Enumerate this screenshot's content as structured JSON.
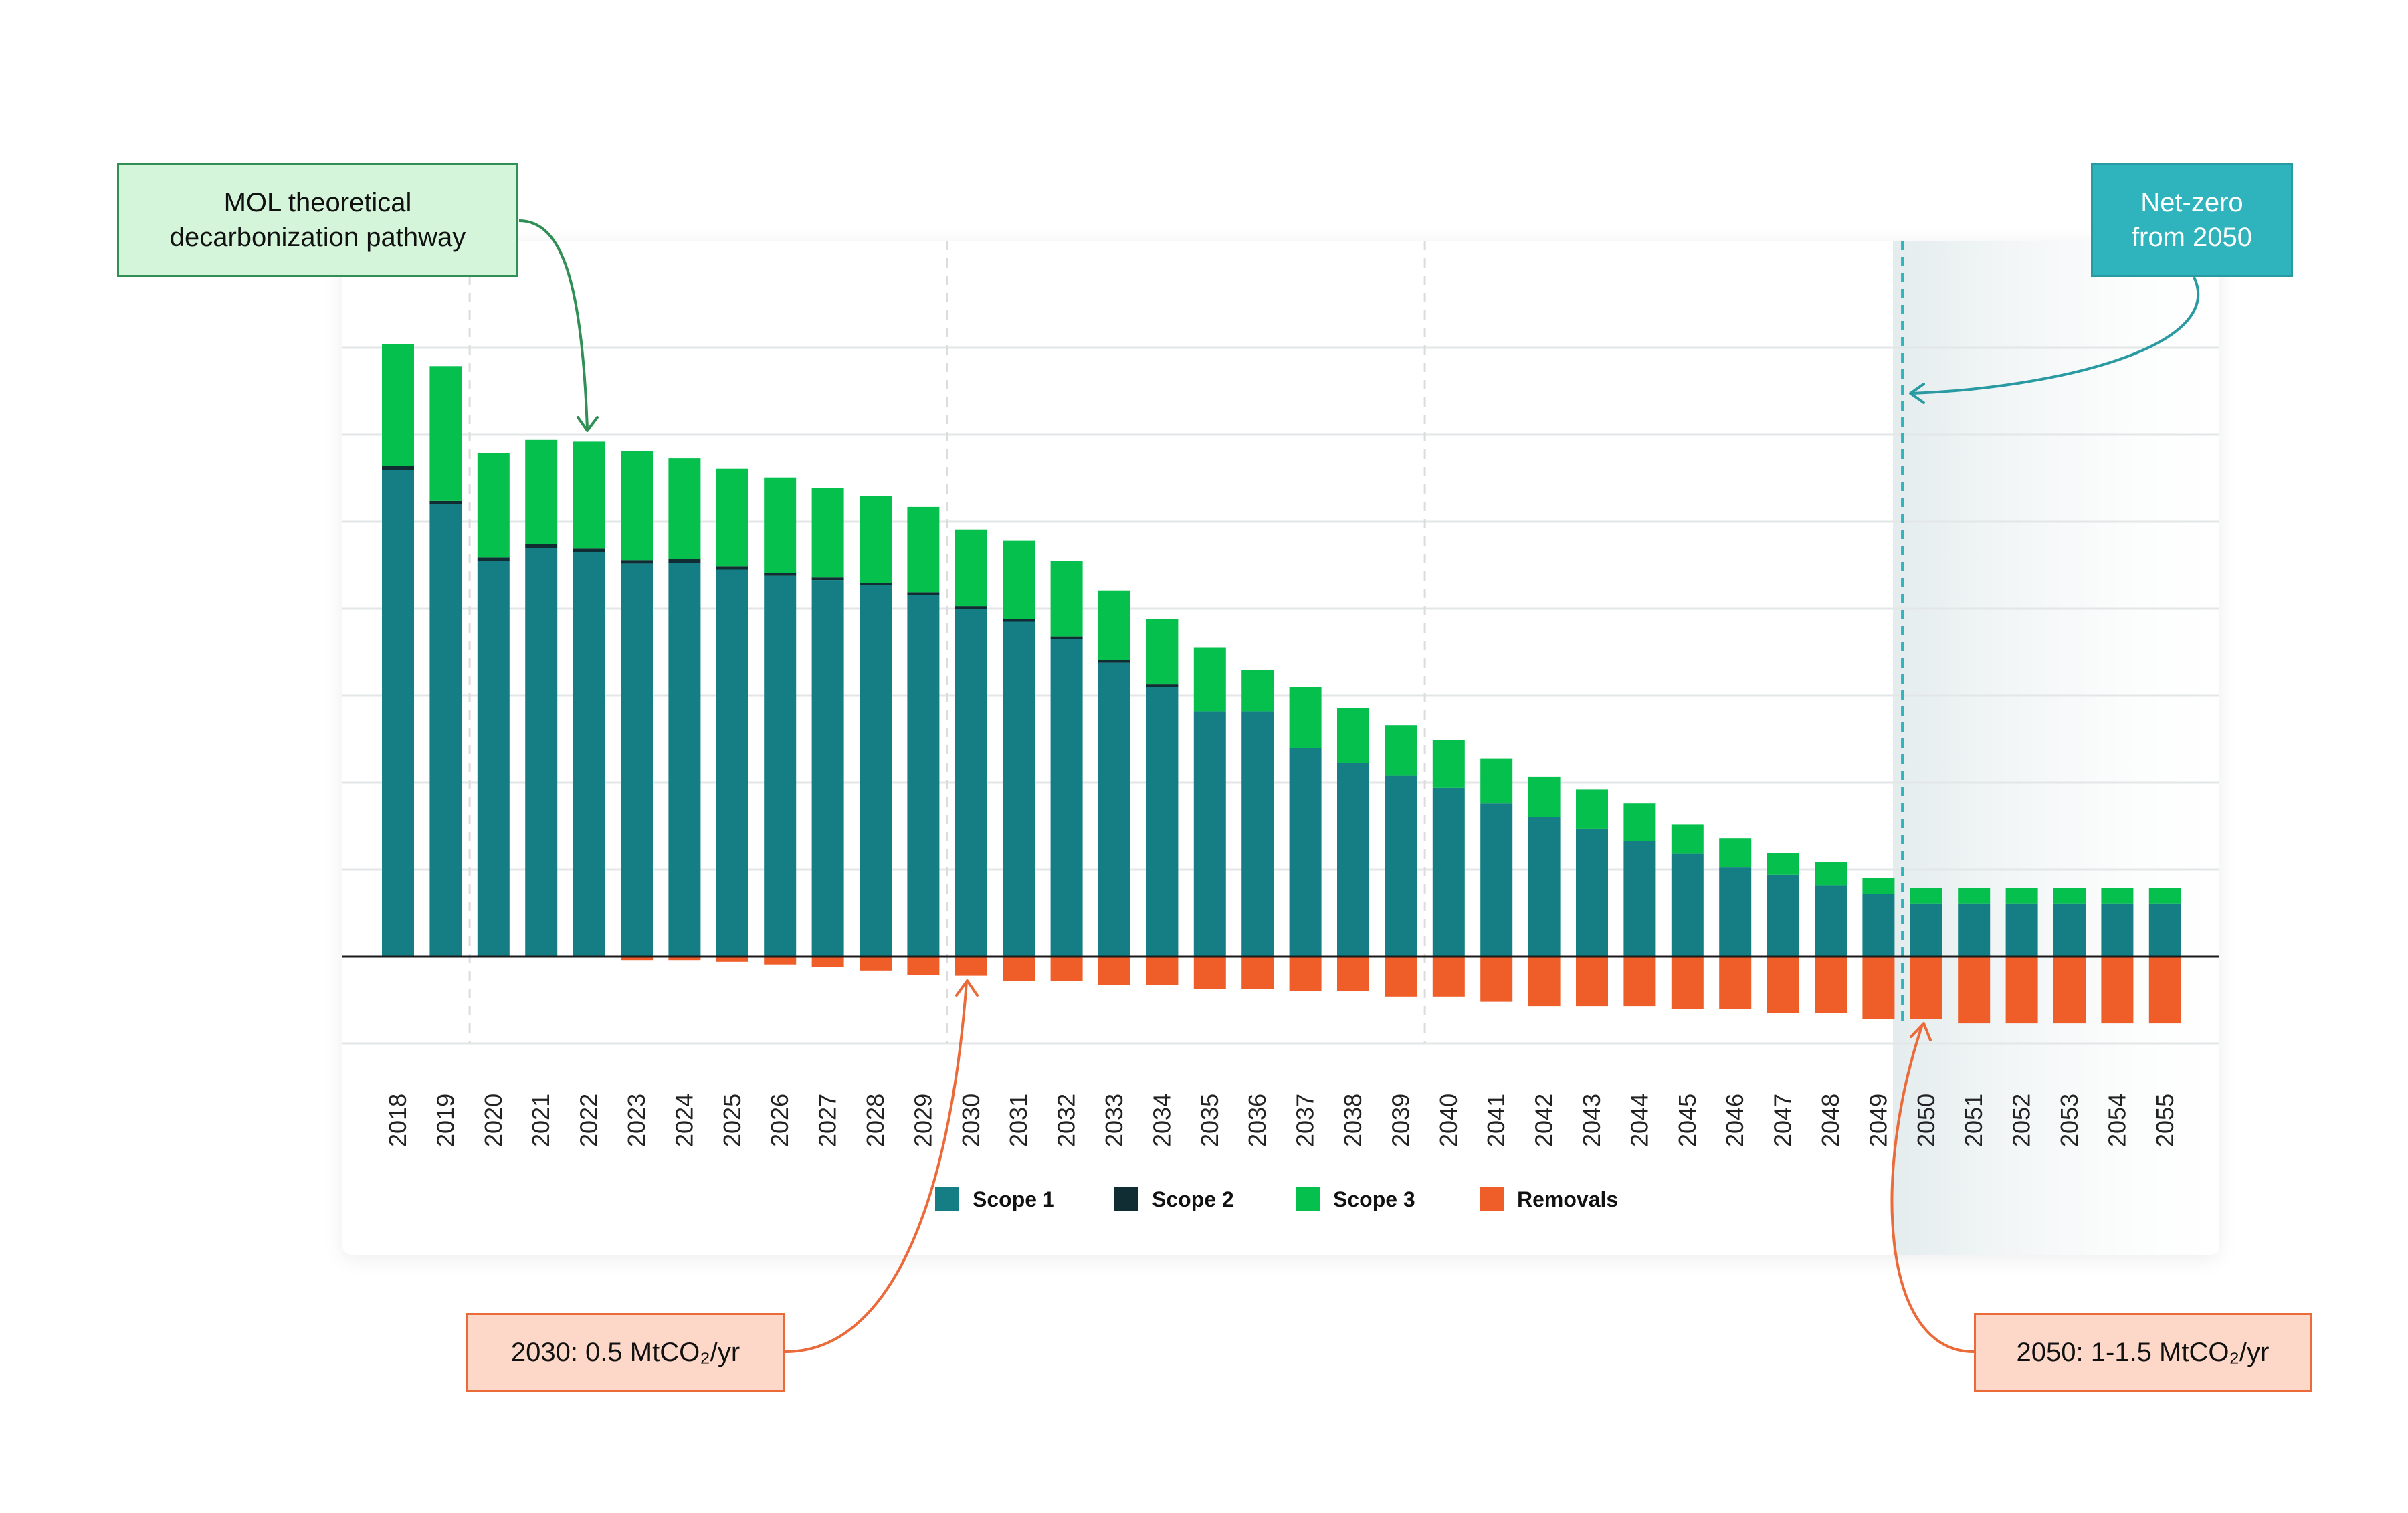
{
  "chart_data": {
    "type": "bar",
    "stacked": true,
    "categories": [
      "2018",
      "2019",
      "2020",
      "2021",
      "2022",
      "2023",
      "2024",
      "2025",
      "2026",
      "2027",
      "2028",
      "2029",
      "2030",
      "2031",
      "2032",
      "2033",
      "2034",
      "2035",
      "2036",
      "2037",
      "2038",
      "2039",
      "2040",
      "2041",
      "2042",
      "2043",
      "2044",
      "2045",
      "2046",
      "2047",
      "2048",
      "2049",
      "2050",
      "2051",
      "2052",
      "2053",
      "2054",
      "2055"
    ],
    "series": [
      {
        "name": "Scope 1",
        "color": "#147e84",
        "values": [
          5.6,
          5.2,
          4.55,
          4.7,
          4.65,
          4.52,
          4.53,
          4.45,
          4.38,
          4.33,
          4.27,
          4.16,
          4.0,
          3.85,
          3.65,
          3.38,
          3.1,
          2.82,
          2.82,
          2.4,
          2.23,
          2.08,
          1.94,
          1.76,
          1.6,
          1.47,
          1.33,
          1.18,
          1.03,
          0.94,
          0.82,
          0.72,
          0.61,
          0.61,
          0.61,
          0.61,
          0.61,
          0.61
        ]
      },
      {
        "name": "Scope 2",
        "color": "#0f2d33",
        "values": [
          0.04,
          0.04,
          0.04,
          0.04,
          0.04,
          0.04,
          0.04,
          0.04,
          0.03,
          0.03,
          0.03,
          0.03,
          0.03,
          0.03,
          0.03,
          0.03,
          0.03,
          0,
          0,
          0,
          0,
          0,
          0,
          0,
          0,
          0,
          0,
          0,
          0,
          0,
          0,
          0,
          0,
          0,
          0,
          0,
          0,
          0
        ]
      },
      {
        "name": "Scope 3",
        "color": "#05c04c",
        "values": [
          1.4,
          1.55,
          1.2,
          1.2,
          1.23,
          1.25,
          1.16,
          1.12,
          1.1,
          1.03,
          1.0,
          0.98,
          0.88,
          0.9,
          0.87,
          0.8,
          0.75,
          0.73,
          0.48,
          0.7,
          0.63,
          0.58,
          0.55,
          0.52,
          0.47,
          0.45,
          0.43,
          0.34,
          0.33,
          0.25,
          0.27,
          0.18,
          0.18,
          0.18,
          0.18,
          0.18,
          0.18,
          0.18
        ]
      },
      {
        "name": "Removals",
        "color": "#ef5d28",
        "values": [
          0,
          0,
          0,
          0,
          0,
          -0.04,
          -0.04,
          -0.06,
          -0.09,
          -0.12,
          -0.16,
          -0.21,
          -0.22,
          -0.28,
          -0.28,
          -0.33,
          -0.33,
          -0.37,
          -0.37,
          -0.4,
          -0.4,
          -0.46,
          -0.46,
          -0.52,
          -0.57,
          -0.57,
          -0.57,
          -0.6,
          -0.6,
          -0.65,
          -0.65,
          -0.72,
          -0.72,
          -0.77,
          -0.77,
          -0.77,
          -0.77,
          -0.77
        ]
      }
    ],
    "ylim": [
      -1.0,
      7.0
    ],
    "grid": true,
    "legend_position": "bottom-center",
    "netzero_year": "2050"
  },
  "annotations": {
    "pathway": [
      "MOL theoretical",
      "decarbonization pathway"
    ],
    "netzero": [
      "Net-zero",
      "from 2050"
    ],
    "removals_2030": "2030: 0.5 MtCO₂/yr",
    "removals_2050": "2050: 1-1.5 MtCO₂/yr"
  },
  "colors": {
    "gridline": "#e3e6e7",
    "dashed_guide": "#dcdcdc",
    "netzero_line": "#2fb3bc",
    "pathway_arrow": "#2f8f55",
    "netzero_arrow": "#2a9aa2",
    "removals_arrow": "#ea6a3a"
  }
}
